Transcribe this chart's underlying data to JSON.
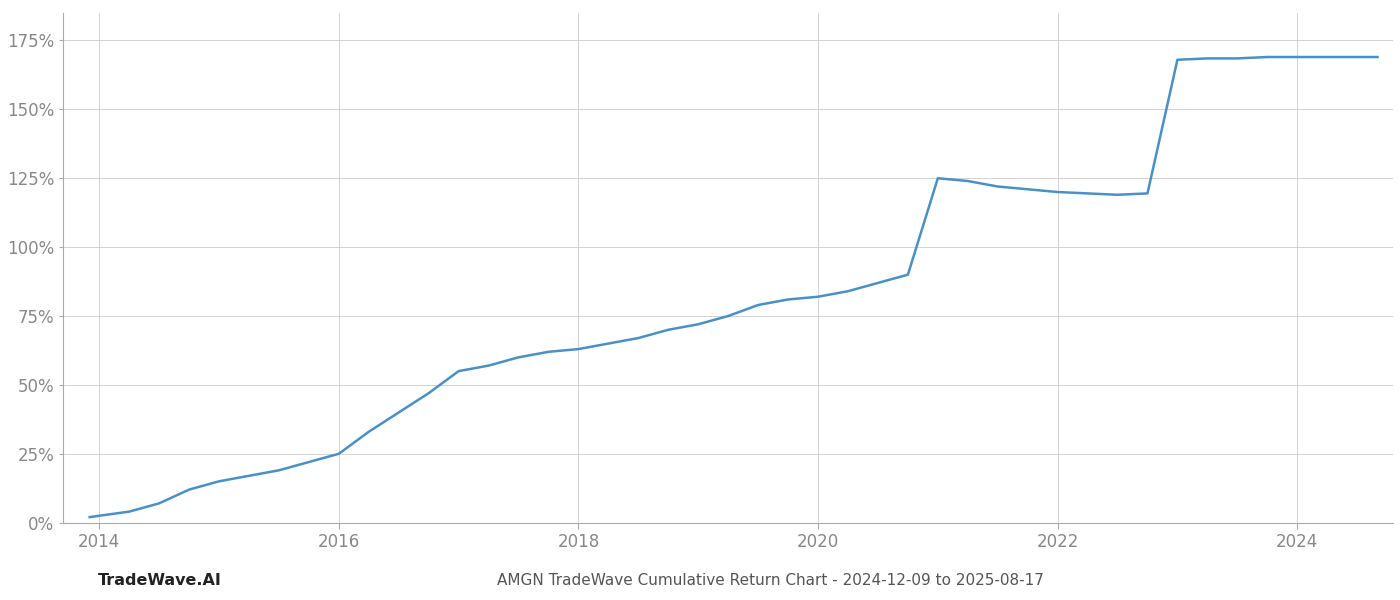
{
  "title": "AMGN TradeWave Cumulative Return Chart - 2024-12-09 to 2025-08-17",
  "watermark": "TradeWave.AI",
  "line_color": "#4a90c4",
  "line_width": 1.8,
  "background_color": "#ffffff",
  "grid_color": "#cccccc",
  "x_years": [
    2013.92,
    2014.0,
    2014.25,
    2014.5,
    2014.75,
    2015.0,
    2015.25,
    2015.5,
    2015.75,
    2016.0,
    2016.25,
    2016.5,
    2016.75,
    2017.0,
    2017.25,
    2017.5,
    2017.75,
    2018.0,
    2018.25,
    2018.5,
    2018.75,
    2019.0,
    2019.25,
    2019.5,
    2019.75,
    2020.0,
    2020.25,
    2020.5,
    2020.75,
    2021.0,
    2021.25,
    2021.5,
    2021.75,
    2022.0,
    2022.25,
    2022.5,
    2022.75,
    2023.0,
    2023.25,
    2023.5,
    2023.75,
    2024.0,
    2024.25,
    2024.5,
    2024.67
  ],
  "y_values": [
    2.0,
    2.5,
    4.0,
    7.0,
    12.0,
    15.0,
    17.0,
    19.0,
    22.0,
    25.0,
    33.0,
    40.0,
    47.0,
    55.0,
    57.0,
    60.0,
    62.0,
    63.0,
    65.0,
    67.0,
    70.0,
    72.0,
    75.0,
    79.0,
    81.0,
    82.0,
    84.0,
    87.0,
    90.0,
    125.0,
    124.0,
    122.0,
    121.0,
    120.0,
    119.5,
    119.0,
    119.5,
    168.0,
    168.5,
    168.5,
    169.0,
    169.0,
    169.0,
    169.0,
    169.0
  ],
  "xlim": [
    2013.7,
    2024.8
  ],
  "ylim": [
    0,
    185
  ],
  "yticks": [
    0,
    25,
    50,
    75,
    100,
    125,
    150,
    175
  ],
  "xticks": [
    2014,
    2016,
    2018,
    2020,
    2022,
    2024
  ],
  "tick_label_color": "#888888",
  "spine_color": "#aaaaaa",
  "title_color": "#555555",
  "title_fontsize": 11,
  "watermark_fontsize": 11.5,
  "tick_fontsize": 12,
  "figsize": [
    14.0,
    6.0
  ],
  "dpi": 100
}
